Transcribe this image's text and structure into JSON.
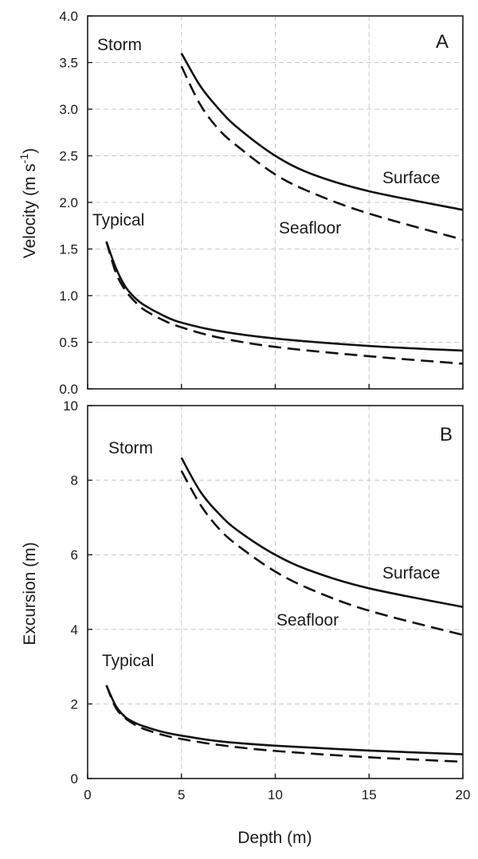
{
  "chart_data": [
    {
      "type": "line",
      "panel_label": "A",
      "xlabel": "",
      "ylabel_main": "Velocity (m s",
      "ylabel_sup": "-1",
      "ylabel_end": ")",
      "xlim": [
        0,
        20
      ],
      "ylim": [
        0,
        4
      ],
      "x_ticks": [
        "0",
        "5",
        "10",
        "15",
        "20"
      ],
      "y_ticks": [
        "0.0",
        "0.5",
        "1.0",
        "1.5",
        "2.0",
        "2.5",
        "3.0",
        "3.5",
        "4.0"
      ],
      "grid": "dashed vertical and horizontal",
      "annotations": [
        "Storm",
        "Typical",
        "Surface",
        "Seafloor"
      ],
      "series": [
        {
          "label": "Storm surface",
          "style": "solid",
          "x": [
            5,
            6,
            7,
            8,
            10,
            12,
            15,
            20
          ],
          "y": [
            3.6,
            3.25,
            3.0,
            2.8,
            2.5,
            2.3,
            2.12,
            1.92
          ]
        },
        {
          "label": "Storm seafloor",
          "style": "dashed",
          "x": [
            5,
            6,
            7,
            8,
            10,
            12,
            15,
            20
          ],
          "y": [
            3.46,
            3.05,
            2.78,
            2.6,
            2.3,
            2.1,
            1.88,
            1.6
          ]
        },
        {
          "label": "Typical surface",
          "style": "solid",
          "x": [
            1,
            1.5,
            2,
            2.5,
            3,
            4,
            5,
            7,
            10,
            15,
            20
          ],
          "y": [
            1.58,
            1.3,
            1.1,
            0.98,
            0.9,
            0.79,
            0.71,
            0.62,
            0.54,
            0.46,
            0.41
          ]
        },
        {
          "label": "Typical seafloor",
          "style": "dashed",
          "x": [
            1,
            1.5,
            2,
            2.5,
            3,
            4,
            5,
            7,
            10,
            15,
            20
          ],
          "y": [
            1.58,
            1.25,
            1.06,
            0.94,
            0.85,
            0.74,
            0.66,
            0.55,
            0.45,
            0.35,
            0.27
          ]
        }
      ]
    },
    {
      "type": "line",
      "panel_label": "B",
      "xlabel": "Depth (m)",
      "ylabel": "Excursion (m)",
      "xlim": [
        0,
        20
      ],
      "ylim": [
        0,
        10
      ],
      "x_ticks": [
        "0",
        "5",
        "10",
        "15",
        "20"
      ],
      "y_ticks": [
        "0",
        "2",
        "4",
        "6",
        "8",
        "10"
      ],
      "grid": "dashed vertical and horizontal",
      "annotations": [
        "Storm",
        "Typical",
        "Surface",
        "Seafloor"
      ],
      "series": [
        {
          "label": "Storm surface",
          "style": "solid",
          "x": [
            5,
            6,
            7,
            8,
            10,
            12,
            15,
            20
          ],
          "y": [
            8.6,
            7.7,
            7.1,
            6.65,
            6.0,
            5.55,
            5.1,
            4.6
          ]
        },
        {
          "label": "Storm seafloor",
          "style": "dashed",
          "x": [
            5,
            6,
            7,
            8,
            10,
            12,
            15,
            20
          ],
          "y": [
            8.25,
            7.35,
            6.7,
            6.25,
            5.55,
            5.05,
            4.5,
            3.85
          ]
        },
        {
          "label": "Typical surface",
          "style": "solid",
          "x": [
            1,
            1.5,
            2,
            2.5,
            3,
            4,
            5,
            7,
            10,
            15,
            20
          ],
          "y": [
            2.5,
            1.95,
            1.65,
            1.5,
            1.4,
            1.25,
            1.15,
            1.0,
            0.88,
            0.75,
            0.65
          ]
        },
        {
          "label": "Typical seafloor",
          "style": "dashed",
          "x": [
            1,
            1.5,
            2,
            2.5,
            3,
            4,
            5,
            7,
            10,
            15,
            20
          ],
          "y": [
            2.5,
            1.9,
            1.62,
            1.45,
            1.33,
            1.17,
            1.06,
            0.9,
            0.74,
            0.57,
            0.45
          ]
        }
      ]
    }
  ]
}
